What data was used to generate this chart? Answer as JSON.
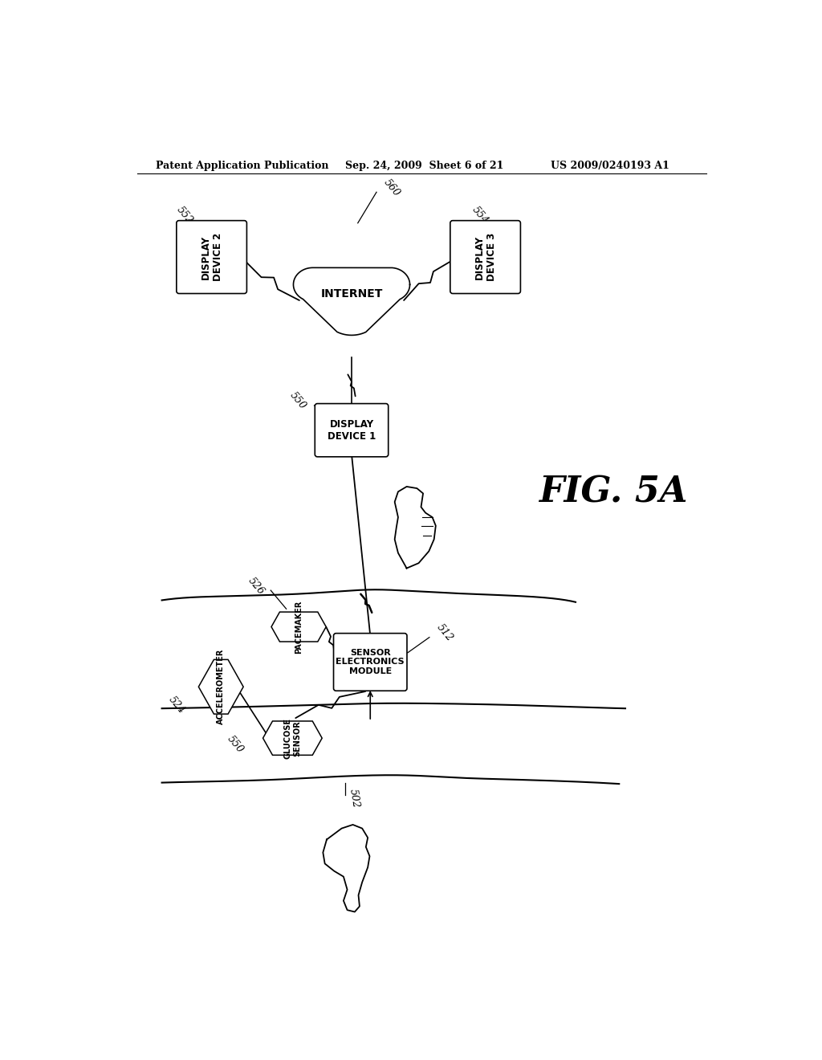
{
  "bg_color": "#ffffff",
  "header_left": "Patent Application Publication",
  "header_mid": "Sep. 24, 2009  Sheet 6 of 21",
  "header_right": "US 2009/0240193 A1",
  "fig_label": "FIG. 5A",
  "inet_label": "INTERNET",
  "d1_label": "DISPLAY\nDEVICE 1",
  "d2_label": "DISPLAY\nDEVICE 2",
  "d3_label": "DISPLAY\nDEVICE 3",
  "sem_label": "SENSOR\nELECTRONICS\nMODULE",
  "pac_label": "PACEMAKER",
  "acc_label": "ACCELEROMETER",
  "glu_label": "GLUCOSE\nSENSOR",
  "ref_560": "560",
  "ref_550a": "550",
  "ref_552": "552",
  "ref_554": "554",
  "ref_512": "512",
  "ref_526": "526",
  "ref_524": "524",
  "ref_550b": "550",
  "ref_502": "502"
}
